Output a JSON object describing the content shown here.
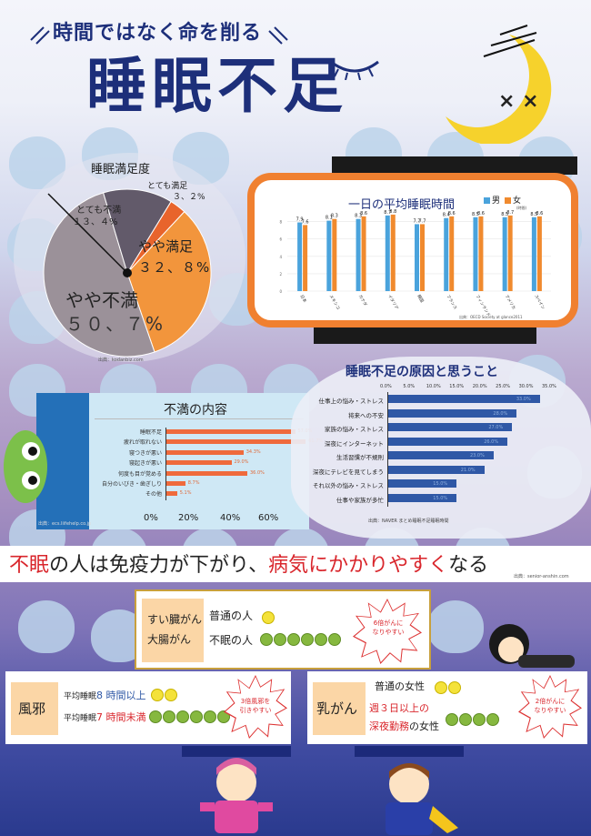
{
  "header": {
    "subtitle": "時間ではなく命を削る",
    "title": "睡眠不足"
  },
  "satisfaction": {
    "title": "睡眠満足度",
    "labels": [
      {
        "name": "とても満足",
        "value": "３、２%"
      },
      {
        "name": "とても不満",
        "value": "１３、４%"
      },
      {
        "name": "やや満足",
        "value": "３２、８%"
      },
      {
        "name": "やや不満",
        "value": "５０、７%"
      }
    ],
    "source": "出典：kodanbiz.com"
  },
  "sleep_time": {
    "title": "一日の平均睡眠時間",
    "legend": [
      "男",
      "女"
    ],
    "unit": "(時間)",
    "source": "出典：OECD Society at glance2011"
  },
  "dissatisfaction": {
    "title": "不満の内容",
    "source": "出典：ecs.liifehelp.co.jp",
    "axis": [
      "0%",
      "20%",
      "40%",
      "60%"
    ]
  },
  "causes": {
    "title": "睡眠不足の原因と思うこと",
    "axis": [
      "0.0%",
      "5.0%",
      "10.0%",
      "15.0%",
      "20.0%",
      "25.0%",
      "30.0%",
      "35.0%"
    ],
    "source": "出典：NAVER まとめ睡眠不足睡眠時間"
  },
  "headline": {
    "part1": "不眠",
    "part2": "の人は免疫力が下がり、",
    "part3": "病気にかかりやすく",
    "part4": "なる",
    "source": "出典：senior-anshin.com"
  },
  "cancer_box": {
    "type1": "すい臓がん",
    "type2": "大腸がん",
    "normal": "普通の人",
    "insomnia": "不眠の人",
    "risk": "6倍がんに\nなりやすい"
  },
  "cold_box": {
    "label": "風邪",
    "line1_a": "平均睡眠",
    "line1_b": "8 時間以上",
    "line2_a": "平均睡眠",
    "line2_b": "7 時間未満",
    "risk": "3倍風邪を\n引きやすい"
  },
  "breast_box": {
    "label": "乳がん",
    "normal": "普通の女性",
    "night1": "週３日以上の",
    "night2": "深夜勤務",
    "night3": "の女性",
    "risk": "2倍がんに\nなりやすい"
  },
  "colors": {
    "navy": "#1d2f7a",
    "accent_red": "#d9262c",
    "orange": "#f0953a",
    "blue": "#2f58a6"
  },
  "chart_data": [
    {
      "type": "pie",
      "title": "睡眠満足度",
      "categories": [
        "とても満足",
        "やや満足",
        "やや不満",
        "とても不満"
      ],
      "values": [
        3.2,
        32.8,
        50.7,
        13.4
      ]
    },
    {
      "type": "bar",
      "title": "一日の平均睡眠時間",
      "ylabel": "(時間)",
      "categories": [
        "日本",
        "メキシコ",
        "カナダ",
        "イタリア",
        "韓国",
        "フランス",
        "フィンランド",
        "アメリカ",
        "スペイン"
      ],
      "series": [
        {
          "name": "男",
          "values": [
            7.9,
            8.1,
            8.3,
            8.7,
            7.7,
            8.4,
            8.5,
            8.5,
            8.5
          ]
        },
        {
          "name": "女",
          "values": [
            7.6,
            8.3,
            8.6,
            8.8,
            7.7,
            8.6,
            8.6,
            8.7,
            8.6
          ]
        }
      ],
      "ylim": [
        0,
        9
      ]
    },
    {
      "type": "bar",
      "title": "不満の内容",
      "categories": [
        "睡眠不足",
        "疲れが取れない",
        "寝つきが悪い",
        "寝起きが悪い",
        "何度も目が覚める",
        "自分のいびき・歯ぎしり",
        "その他"
      ],
      "values": [
        57.0,
        61.7,
        34.3,
        29.0,
        36.0,
        8.7,
        5.1
      ],
      "xlim": [
        0,
        60
      ]
    },
    {
      "type": "bar",
      "title": "睡眠不足の原因と思うこと",
      "categories": [
        "仕事上の悩み・ストレス",
        "将来への不安",
        "家族の悩み・ストレス",
        "深夜にインターネット",
        "生活習慣が不規則",
        "深夜にテレビを見てしまう",
        "それ以外の悩み・ストレス",
        "仕事や家族が多忙"
      ],
      "values": [
        33.0,
        28.0,
        27.0,
        26.0,
        23.0,
        21.0,
        15.0,
        15.0
      ],
      "xlim": [
        0,
        35
      ]
    }
  ]
}
